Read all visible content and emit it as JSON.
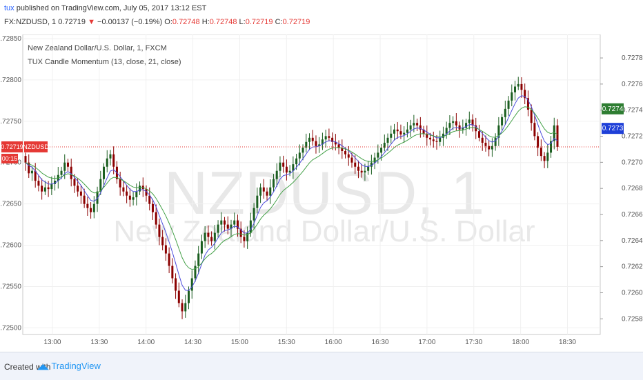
{
  "header": {
    "user": "tux",
    "published": "published on TradingView.com, July 05, 2017 13:12 EST",
    "symbol_line": "FX:NZDUSD, 1  0.72719",
    "change": "−0.00137 (−0.19%)",
    "o_label": "O:",
    "o_val": "0.72748",
    "h_label": "H:",
    "h_val": "0.72748",
    "l_label": "L:",
    "l_val": "0.72719",
    "c_label": "C:",
    "c_val": "0.72719",
    "down_icon": "down-triangle-icon"
  },
  "footer": {
    "created": "Created with",
    "brand": "TradingView",
    "logo_icon": "tradingview-logo-icon"
  },
  "chart_data": {
    "type": "candlestick",
    "legend": [
      "New Zealand Dollar/U.S. Dollar, 1, FXCM",
      "TUX Candle Momentum (13, close, 21, close)"
    ],
    "watermark_symbol": "NZDUSD, 1",
    "watermark_name": "New Zealand Dollar/U.S. Dollar",
    "x_ticks": [
      "13:00",
      "13:30",
      "14:00",
      "14:30",
      "15:00",
      "15:30",
      "16:00",
      "16:30",
      "17:00",
      "17:30",
      "18:00",
      "18:30"
    ],
    "x_range": [
      "12:41",
      "18:51"
    ],
    "left_axis": {
      "ticks": [
        "0.72850",
        "0.72800",
        "0.72750",
        "0.72700",
        "0.72650",
        "0.72600",
        "0.72550",
        "0.72500"
      ],
      "range": [
        0.72492,
        0.72855
      ]
    },
    "right_axis": {
      "ticks": [
        "0.7278",
        "0.7276",
        "0.7274",
        "0.7272",
        "0.7270",
        "0.7268",
        "0.7266",
        "0.7264",
        "0.7262",
        "0.7260",
        "0.7258"
      ],
      "range": [
        0.72568,
        0.72798
      ]
    },
    "price_line": {
      "value": 0.72719,
      "label": "0.72719",
      "symbol": "NZDUSD",
      "countdown": "00:15"
    },
    "badges": [
      {
        "value": 0.72741,
        "label": "0.7274",
        "color": "#2e7d32"
      },
      {
        "value": 0.72726,
        "label": "0.7273",
        "color": "#1e3fd8"
      }
    ],
    "colors": {
      "up": "#1b5e20",
      "down": "#8b0000",
      "fast_ma": "#4b4bdc",
      "slow_ma": "#43a047",
      "price_line": "#e53935"
    },
    "series_close": [
      0.727,
      0.72687,
      0.7269,
      0.72678,
      0.72672,
      0.72665,
      0.7267,
      0.72668,
      0.72674,
      0.72678,
      0.72685,
      0.7269,
      0.727,
      0.72695,
      0.7268,
      0.72672,
      0.72665,
      0.7266,
      0.7265,
      0.72645,
      0.7264,
      0.7265,
      0.72665,
      0.7268,
      0.72695,
      0.72705,
      0.7271,
      0.72695,
      0.7268,
      0.7267,
      0.72665,
      0.7266,
      0.72655,
      0.72658,
      0.72665,
      0.72672,
      0.72668,
      0.7266,
      0.7265,
      0.7264,
      0.72625,
      0.7261,
      0.726,
      0.7259,
      0.72575,
      0.7256,
      0.72545,
      0.7253,
      0.7252,
      0.7253,
      0.72545,
      0.7256,
      0.72575,
      0.7259,
      0.72605,
      0.72615,
      0.7261,
      0.72605,
      0.72615,
      0.72625,
      0.7263,
      0.72625,
      0.7262,
      0.72625,
      0.7263,
      0.7262,
      0.7261,
      0.72605,
      0.72615,
      0.7263,
      0.72645,
      0.7266,
      0.7267,
      0.72665,
      0.7266,
      0.7267,
      0.7268,
      0.7269,
      0.727,
      0.72695,
      0.72688,
      0.7269,
      0.72698,
      0.72705,
      0.72712,
      0.72718,
      0.72725,
      0.7273,
      0.72726,
      0.7272,
      0.72722,
      0.72728,
      0.72732,
      0.7273,
      0.72725,
      0.72722,
      0.72718,
      0.72714,
      0.7271,
      0.72706,
      0.727,
      0.72695,
      0.7269,
      0.72688,
      0.7269,
      0.72695,
      0.727,
      0.72706,
      0.72712,
      0.72718,
      0.72724,
      0.7273,
      0.72735,
      0.7274,
      0.72738,
      0.72734,
      0.72736,
      0.7274,
      0.72745,
      0.72748,
      0.72745,
      0.7274,
      0.72735,
      0.7273,
      0.72728,
      0.72726,
      0.72725,
      0.7273,
      0.72735,
      0.72742,
      0.72748,
      0.7275,
      0.72745,
      0.7274,
      0.72742,
      0.72748,
      0.72752,
      0.72745,
      0.72738,
      0.7273,
      0.72724,
      0.7272,
      0.72716,
      0.7272,
      0.7273,
      0.72745,
      0.72755,
      0.72765,
      0.72775,
      0.72785,
      0.72792,
      0.72795,
      0.72788,
      0.72778,
      0.72764,
      0.72748,
      0.72732,
      0.72718,
      0.72708,
      0.72702,
      0.72712,
      0.72726,
      0.72745,
      0.72719
    ]
  }
}
